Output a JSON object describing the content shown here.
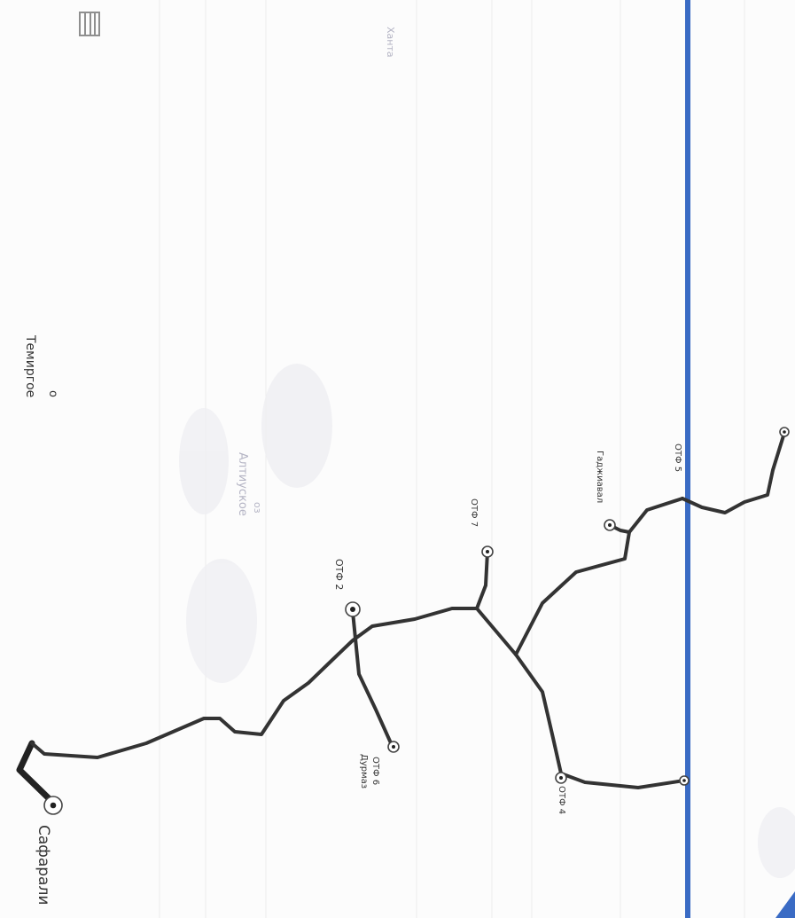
{
  "map": {
    "orientation": "rotated 90deg clockwise",
    "colors": {
      "background": "#fcfcfc",
      "road": "#333333",
      "boundary_line": "#3a6bc4",
      "faint_label": "#b4b4c4"
    },
    "places": {
      "safarali": "Сафарали",
      "otf4": "ОТФ 4",
      "otf6_a": "ОТФ 6",
      "otf6_b": "Дурмаз",
      "otf2": "ОТФ 2",
      "otf7": "ОТФ 7",
      "gadzhiaval": "Гаджиавал",
      "otf5": "ОТФ 5",
      "temirgoe": "Темиргое",
      "temirgoe_marker": "о",
      "altiuskoe": "Алтиуское",
      "oz_marker": "оз",
      "khanta": "Ханта"
    },
    "icons": {
      "settlement": "circle-dot-icon",
      "scale": "scale-bar-icon",
      "corner": "compass-corner-icon"
    }
  }
}
